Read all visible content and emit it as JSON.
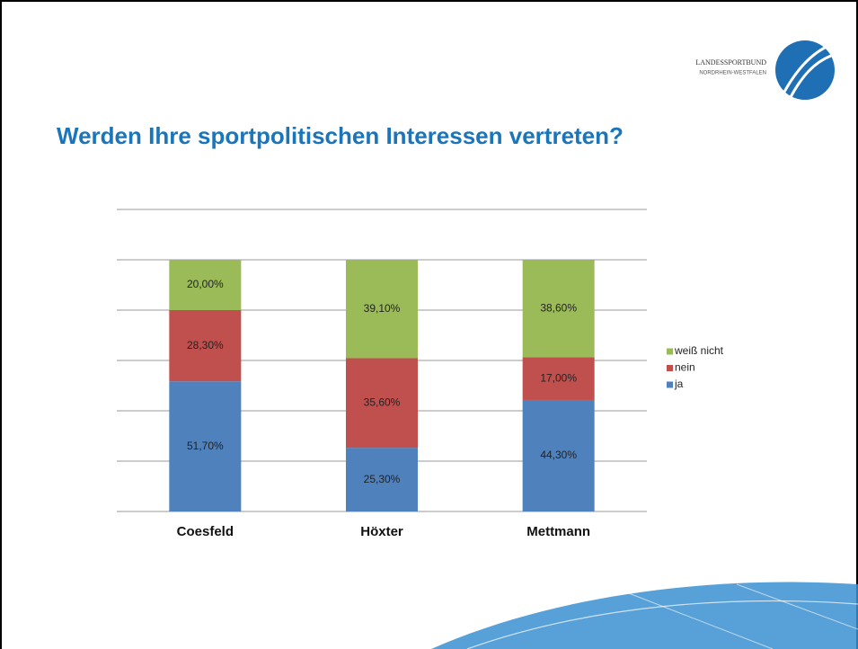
{
  "logo": {
    "line1": "LANDESSPORTBUND",
    "line2": "NORDRHEIN-WESTFALEN"
  },
  "chart_data": {
    "type": "stacked_bar",
    "title": "Werden Ihre sportpolitischen Interessen vertreten?",
    "categories": [
      "Coesfeld",
      "Höxter",
      "Mettmann"
    ],
    "series": [
      {
        "name": "ja",
        "color": "#4f81bd",
        "values": [
          51.7,
          25.3,
          44.3
        ],
        "value_labels": [
          "51,70%",
          "25,30%",
          "44,30%"
        ]
      },
      {
        "name": "nein",
        "color": "#c0504d",
        "values": [
          28.3,
          35.6,
          17.0
        ],
        "value_labels": [
          "28,30%",
          "35,60%",
          "17,00%"
        ]
      },
      {
        "name": "weiß nicht",
        "color": "#9bbb59",
        "values": [
          20.0,
          39.1,
          38.6
        ],
        "value_labels": [
          "20,00%",
          "39,10%",
          "38,60%"
        ]
      }
    ],
    "ylim": [
      0,
      120
    ],
    "yticks": [
      0,
      20,
      40,
      60,
      80,
      100,
      120
    ],
    "grid": true,
    "legend": "right"
  }
}
